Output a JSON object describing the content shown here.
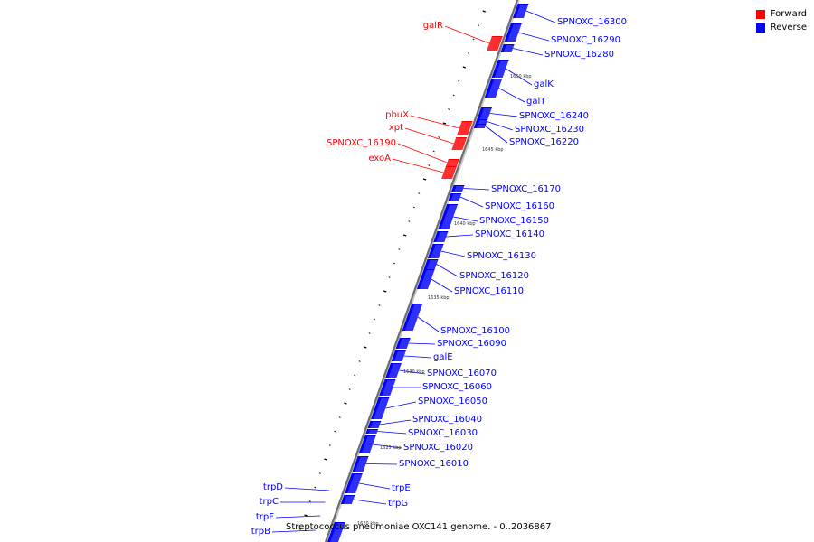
{
  "legend": {
    "forward": {
      "label": "Forward",
      "color": "#ff0000"
    },
    "reverse": {
      "label": "Reverse",
      "color": "#0000ff"
    }
  },
  "caption": "Streptococcus pneumoniae OXC141 genome. - 0..2036867",
  "axis": {
    "ticks": [
      "1650 kbp",
      "1645 kbp",
      "1640 kbp",
      "1635 kbp",
      "1630 kbp",
      "1625 kbp",
      "1620 kbp"
    ]
  },
  "genes": {
    "forward": [
      "galR",
      "pbuX",
      "xpt",
      "SPNOXC_16190",
      "exoA"
    ],
    "reverse": [
      "SPNOXC_16300",
      "SPNOXC_16290",
      "SPNOXC_16280",
      "galK",
      "galT",
      "SPNOXC_16240",
      "SPNOXC_16230",
      "SPNOXC_16220",
      "SPNOXC_16170",
      "SPNOXC_16160",
      "SPNOXC_16150",
      "SPNOXC_16140",
      "SPNOXC_16130",
      "SPNOXC_16120",
      "SPNOXC_16110",
      "SPNOXC_16100",
      "SPNOXC_16090",
      "galE",
      "SPNOXC_16070",
      "SPNOXC_16060",
      "SPNOXC_16050",
      "SPNOXC_16040",
      "SPNOXC_16030",
      "SPNOXC_16020",
      "SPNOXC_16010",
      "trpE",
      "trpG"
    ],
    "reverse_left": [
      "trpD",
      "trpC",
      "trpF",
      "trpB"
    ]
  }
}
